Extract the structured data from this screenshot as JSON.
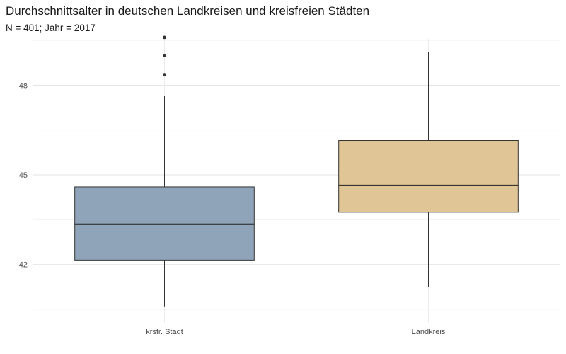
{
  "chart_data": {
    "type": "boxplot",
    "title": "Durchschnittsalter in deutschen Landkreisen und kreisfreien Städten",
    "subtitle": "N = 401; Jahr = 2017",
    "xlabel": "",
    "ylabel": "",
    "categories": [
      "krsfr. Stadt",
      "Landkreis"
    ],
    "y_ticks": [
      42,
      45,
      48
    ],
    "ylim": [
      40.05,
      49.55
    ],
    "grid": "major and minor horizontal, major vertical",
    "legend": "none",
    "boxes": [
      {
        "category": "krsfr. Stadt",
        "color": "#8fa4b8",
        "whisker_low": 40.6,
        "q1": 42.15,
        "median": 43.35,
        "q3": 44.6,
        "whisker_high": 47.65,
        "outliers": [
          48.35,
          49.0,
          49.6
        ]
      },
      {
        "category": "Landkreis",
        "color": "#e0c596",
        "whisker_low": 41.25,
        "q1": 43.75,
        "median": 44.65,
        "q3": 46.15,
        "whisker_high": 49.1,
        "outliers": []
      }
    ]
  }
}
